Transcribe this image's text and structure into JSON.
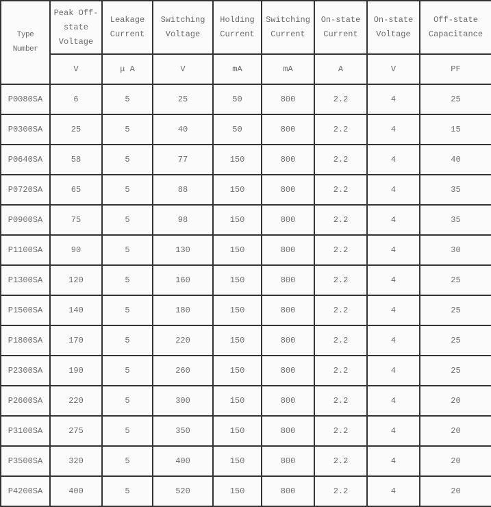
{
  "page": {
    "background": "#fbfbfb",
    "border_color": "#333333",
    "text_color": "#6b6b6b"
  },
  "table": {
    "columns": [
      {
        "label": "Type Number",
        "unit": ""
      },
      {
        "label": "Peak Off-state Voltage",
        "unit": "V"
      },
      {
        "label": "Leakage Current",
        "unit": "μ A"
      },
      {
        "label": "Switching Voltage",
        "unit": "V"
      },
      {
        "label": "Holding Current",
        "unit": "mA"
      },
      {
        "label": "Switching Current",
        "unit": "mA"
      },
      {
        "label": "On-state Current",
        "unit": "A"
      },
      {
        "label": "On-state Voltage",
        "unit": "V"
      },
      {
        "label": "Off-state Capacitance",
        "unit": "PF"
      }
    ],
    "rows": [
      [
        "P0080SA",
        "6",
        "5",
        "25",
        "50",
        "800",
        "2.2",
        "4",
        "25"
      ],
      [
        "P0300SA",
        "25",
        "5",
        "40",
        "50",
        "800",
        "2.2",
        "4",
        "15"
      ],
      [
        "P0640SA",
        "58",
        "5",
        "77",
        "150",
        "800",
        "2.2",
        "4",
        "40"
      ],
      [
        "P0720SA",
        "65",
        "5",
        "88",
        "150",
        "800",
        "2.2",
        "4",
        "35"
      ],
      [
        "P0900SA",
        "75",
        "5",
        "98",
        "150",
        "800",
        "2.2",
        "4",
        "35"
      ],
      [
        "P1100SA",
        "90",
        "5",
        "130",
        "150",
        "800",
        "2.2",
        "4",
        "30"
      ],
      [
        "P1300SA",
        "120",
        "5",
        "160",
        "150",
        "800",
        "2.2",
        "4",
        "25"
      ],
      [
        "P1500SA",
        "140",
        "5",
        "180",
        "150",
        "800",
        "2.2",
        "4",
        "25"
      ],
      [
        "P1800SA",
        "170",
        "5",
        "220",
        "150",
        "800",
        "2.2",
        "4",
        "25"
      ],
      [
        "P2300SA",
        "190",
        "5",
        "260",
        "150",
        "800",
        "2.2",
        "4",
        "25"
      ],
      [
        "P2600SA",
        "220",
        "5",
        "300",
        "150",
        "800",
        "2.2",
        "4",
        "20"
      ],
      [
        "P3100SA",
        "275",
        "5",
        "350",
        "150",
        "800",
        "2.2",
        "4",
        "20"
      ],
      [
        "P3500SA",
        "320",
        "5",
        "400",
        "150",
        "800",
        "2.2",
        "4",
        "20"
      ],
      [
        "P4200SA",
        "400",
        "5",
        "520",
        "150",
        "800",
        "2.2",
        "4",
        "20"
      ]
    ]
  }
}
